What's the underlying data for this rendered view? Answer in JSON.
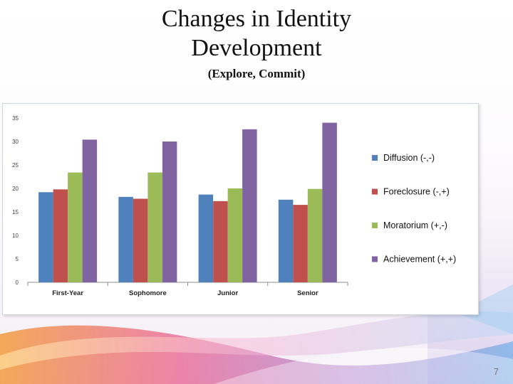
{
  "slide": {
    "title_line1": "Changes in Identity",
    "title_line2": "Development",
    "subtitle": "(Explore, Commit)",
    "page_number": "7"
  },
  "chart_data": {
    "type": "bar",
    "title": "",
    "xlabel": "",
    "ylabel": "",
    "categories": [
      "First-Year",
      "Sophomore",
      "Junior",
      "Senior"
    ],
    "ylim": [
      0,
      35
    ],
    "yticks": [
      0,
      5,
      10,
      15,
      20,
      25,
      30,
      35
    ],
    "grid": false,
    "legend_position": "right",
    "series": [
      {
        "name": "Diffusion (-,-)",
        "color": "#4f81bd",
        "values": [
          19.2,
          18.2,
          18.7,
          17.6
        ]
      },
      {
        "name": "Foreclosure (-,+)",
        "color": "#c0504d",
        "values": [
          19.8,
          17.8,
          17.3,
          16.5
        ]
      },
      {
        "name": "Moratorium (+,-)",
        "color": "#9bbb59",
        "values": [
          23.4,
          23.4,
          20.0,
          19.9
        ]
      },
      {
        "name": "Achievement (+,+)",
        "color": "#8064a2",
        "values": [
          30.4,
          30.0,
          32.6,
          34.0
        ]
      }
    ]
  }
}
